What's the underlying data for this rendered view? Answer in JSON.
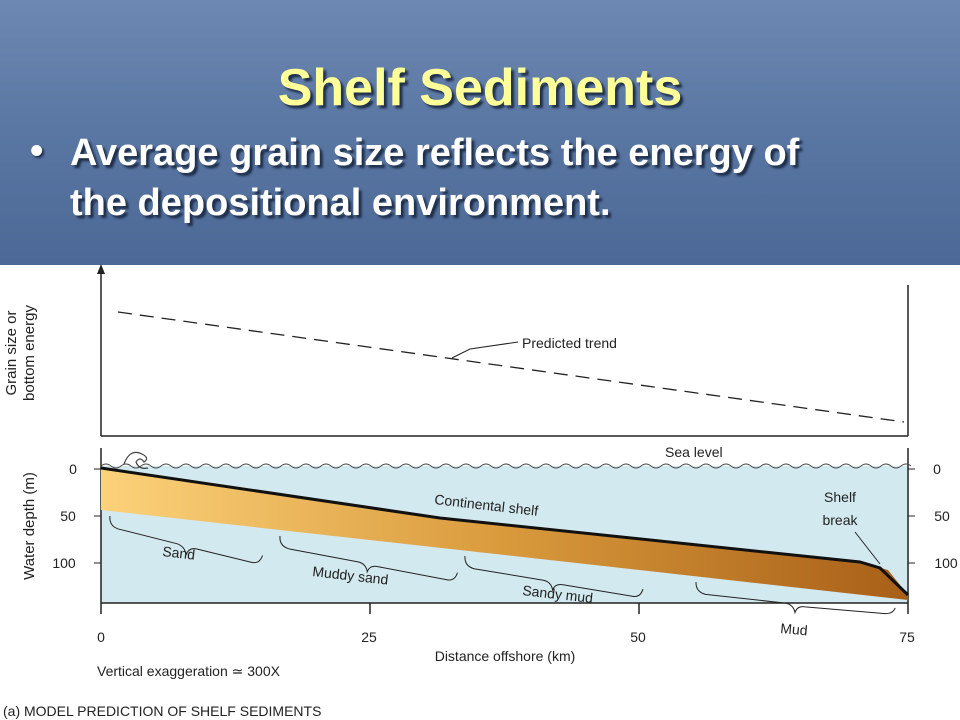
{
  "slide": {
    "title": "Shelf Sediments",
    "bullet_line1": "Average grain size reflects the energy of",
    "bullet_line2": "the depositional environment."
  },
  "figure": {
    "y_axis_top_line1": "Grain size or",
    "y_axis_top_line2": "bottom energy",
    "trend_label": "Predicted trend",
    "sea_level": "Sea level",
    "water_depth_label": "Water depth (m)",
    "depth_ticks": [
      "0",
      "50",
      "100"
    ],
    "continental_shelf": "Continental shelf",
    "shelf_break_line1": "Shelf",
    "shelf_break_line2": "break",
    "zones": [
      "Sand",
      "Muddy sand",
      "Sandy mud",
      "Mud"
    ],
    "distance_ticks": [
      "0",
      "25",
      "50",
      "75"
    ],
    "x_axis_label": "Distance offshore (km)",
    "vertical_exaggeration": "Vertical exaggeration ≃ 300X",
    "caption": "(a) MODEL PREDICTION OF SHELF SEDIMENTS",
    "colors": {
      "water": "#d3e9f0",
      "sediment_near": "#fcd27a",
      "sediment_far": "#a85f18",
      "banner": "#5b78a4",
      "title": "#ffff99"
    }
  }
}
